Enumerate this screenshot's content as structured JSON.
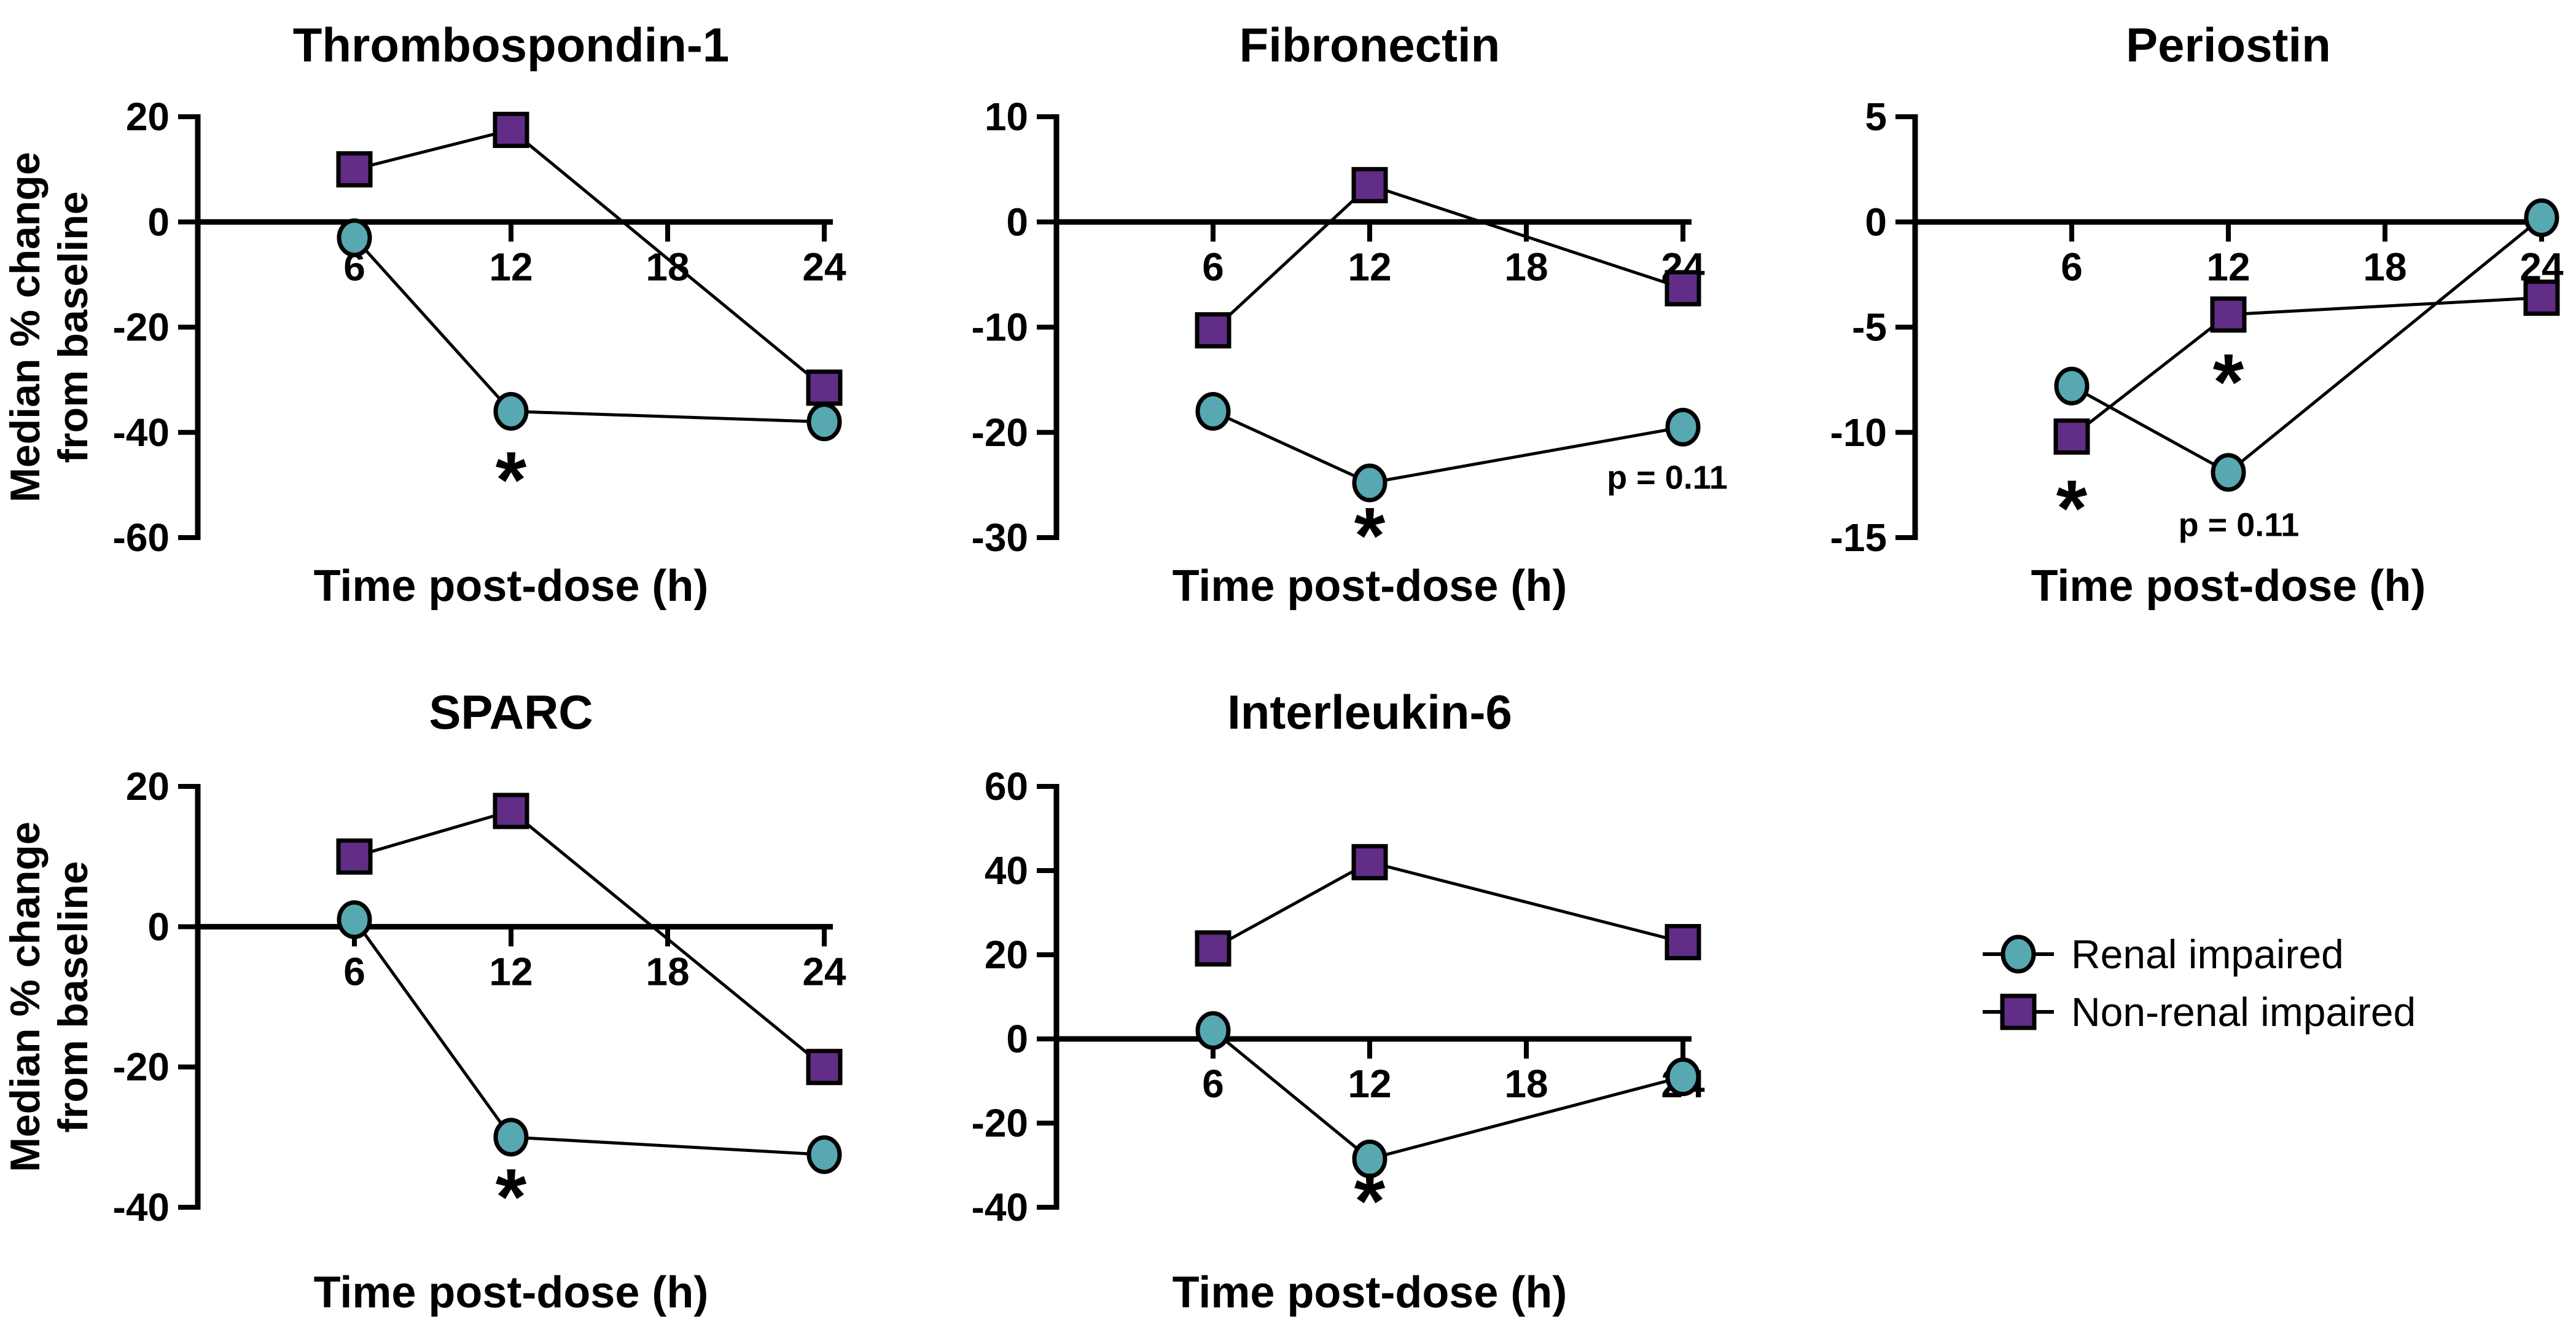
{
  "figure": {
    "background": "#ffffff"
  },
  "colors": {
    "renal": "#57A8B0",
    "non_renal": "#622D86",
    "axis": "#000000"
  },
  "legend": {
    "position": "bottom-right",
    "items": [
      {
        "label": "Renal impaired",
        "marker": "circle",
        "color_key": "renal"
      },
      {
        "label": "Non-renal impaired",
        "marker": "square",
        "color_key": "non_renal"
      }
    ]
  },
  "chart_data": [
    {
      "id": "thrombospondin-1",
      "type": "line",
      "title": "Thrombospondin-1",
      "xlabel": "Time post-dose (h)",
      "ylabel_lines": [
        "Median % change",
        "from baseline"
      ],
      "xticks": [
        6,
        12,
        18,
        24
      ],
      "yticks": [
        20,
        0,
        -20,
        -40,
        -60
      ],
      "ylim": [
        20,
        -60
      ],
      "x": [
        6,
        12,
        24
      ],
      "series": [
        {
          "name": "Non-renal impaired",
          "marker": "square",
          "color_key": "non_renal",
          "values": [
            10,
            17.5,
            -31.5
          ]
        },
        {
          "name": "Renal impaired",
          "marker": "circle",
          "color_key": "renal",
          "values": [
            -3,
            -36,
            -38
          ]
        }
      ],
      "annotations": [
        {
          "kind": "star",
          "text": "*",
          "x": 12,
          "y": -47
        }
      ]
    },
    {
      "id": "fibronectin",
      "type": "line",
      "title": "Fibronectin",
      "xlabel": "Time post-dose (h)",
      "ylabel_lines": [],
      "xticks": [
        6,
        12,
        18,
        24
      ],
      "yticks": [
        10,
        0,
        -10,
        -20,
        -30
      ],
      "ylim": [
        10,
        -30
      ],
      "x": [
        6,
        12,
        24
      ],
      "series": [
        {
          "name": "Non-renal impaired",
          "marker": "square",
          "color_key": "non_renal",
          "values": [
            -10.3,
            3.5,
            -6.3
          ]
        },
        {
          "name": "Renal impaired",
          "marker": "circle",
          "color_key": "renal",
          "values": [
            -18,
            -24.8,
            -19.5
          ]
        }
      ],
      "annotations": [
        {
          "kind": "star",
          "text": "*",
          "x": 12,
          "y": -28.8
        },
        {
          "kind": "ptext",
          "text": "p = 0.11",
          "x": 23.4,
          "y": -24.3
        }
      ]
    },
    {
      "id": "periostin",
      "type": "line",
      "title": "Periostin",
      "xlabel": "Time post-dose (h)",
      "ylabel_lines": [],
      "xticks": [
        6,
        12,
        18,
        24
      ],
      "yticks": [
        5,
        0,
        -5,
        -10,
        -15
      ],
      "ylim": [
        5,
        -15
      ],
      "x": [
        6,
        12,
        24
      ],
      "series": [
        {
          "name": "Non-renal impaired",
          "marker": "square",
          "color_key": "non_renal",
          "values": [
            -10.2,
            -4.4,
            -3.6
          ]
        },
        {
          "name": "Renal impaired",
          "marker": "circle",
          "color_key": "renal",
          "values": [
            -7.8,
            -11.9,
            0.2
          ]
        }
      ],
      "annotations": [
        {
          "kind": "star",
          "text": "*",
          "x": 6,
          "y": -13.1
        },
        {
          "kind": "star",
          "text": "*",
          "x": 12,
          "y": -7.1
        },
        {
          "kind": "ptext",
          "text": "p = 0.11",
          "x": 12.4,
          "y": -14.4
        }
      ]
    },
    {
      "id": "sparc",
      "type": "line",
      "title": "SPARC",
      "xlabel": "Time post-dose (h)",
      "ylabel_lines": [
        "Median % change",
        "from baseline"
      ],
      "xticks": [
        6,
        12,
        18,
        24
      ],
      "yticks": [
        20,
        0,
        -20,
        -40
      ],
      "ylim": [
        20,
        -40
      ],
      "x": [
        6,
        12,
        24
      ],
      "series": [
        {
          "name": "Non-renal impaired",
          "marker": "square",
          "color_key": "non_renal",
          "values": [
            10,
            16.5,
            -20
          ]
        },
        {
          "name": "Renal impaired",
          "marker": "circle",
          "color_key": "renal",
          "values": [
            1,
            -30,
            -32.5
          ]
        }
      ],
      "annotations": [
        {
          "kind": "star",
          "text": "*",
          "x": 12,
          "y": -37
        }
      ]
    },
    {
      "id": "interleukin-6",
      "type": "line",
      "title": "Interleukin-6",
      "xlabel": "Time post-dose (h)",
      "ylabel_lines": [],
      "xticks": [
        6,
        12,
        18,
        24
      ],
      "yticks": [
        60,
        40,
        20,
        0,
        -20,
        -40
      ],
      "ylim": [
        60,
        -40
      ],
      "x": [
        6,
        12,
        24
      ],
      "series": [
        {
          "name": "Non-renal impaired",
          "marker": "square",
          "color_key": "non_renal",
          "values": [
            21.5,
            42,
            23
          ]
        },
        {
          "name": "Renal impaired",
          "marker": "circle",
          "color_key": "renal",
          "values": [
            2,
            -28.5,
            -9
          ]
        }
      ],
      "annotations": [
        {
          "kind": "star",
          "text": "*",
          "x": 12,
          "y": -36
        }
      ]
    }
  ]
}
